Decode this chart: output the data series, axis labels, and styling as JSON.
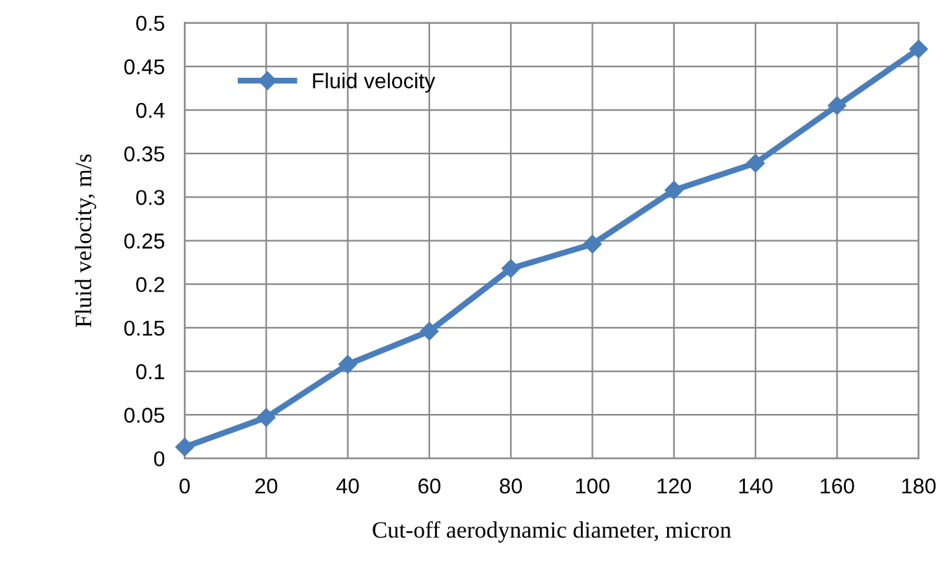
{
  "chart_data": {
    "type": "line",
    "xlabel": "Cut-off aerodynamic diameter, micron",
    "ylabel": "Fluid velocity, m/s",
    "x": [
      0,
      20,
      40,
      60,
      80,
      100,
      120,
      140,
      160,
      180
    ],
    "series": [
      {
        "name": "Fluid velocity",
        "color": "#4a7ebb",
        "values": [
          0.013,
          0.047,
          0.108,
          0.146,
          0.218,
          0.246,
          0.308,
          0.339,
          0.405,
          0.47
        ]
      }
    ],
    "xlim": [
      0,
      180
    ],
    "xticks": [
      0,
      20,
      40,
      60,
      80,
      100,
      120,
      140,
      160,
      180
    ],
    "ylim": [
      0,
      0.5
    ],
    "yticks": [
      {
        "value": 0,
        "label": "0"
      },
      0.05,
      0.1,
      0.15,
      0.2,
      0.25,
      0.3,
      0.35,
      0.4,
      0.45,
      0.5
    ],
    "grid": true,
    "legend": "top left",
    "marker": "diamond",
    "line_style": "solid"
  }
}
